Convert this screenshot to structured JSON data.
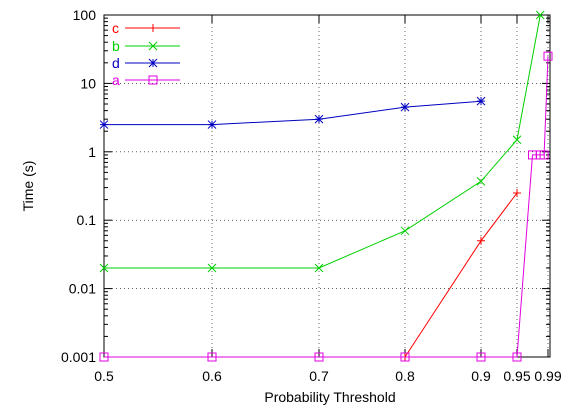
{
  "chart_data": {
    "type": "line",
    "xlabel": "Probability Threshold",
    "ylabel": "Time (s)",
    "x_scale": "categorical",
    "y_scale": "log",
    "ylim": [
      0.001,
      100
    ],
    "grid": true,
    "legend_placement": "top-left",
    "x_ticks": [
      "0.5",
      "0.6",
      "0.7",
      "0.8",
      "0.9",
      "0.95",
      "0.99"
    ],
    "y_ticks": [
      "0.001",
      "0.01",
      "0.1",
      "1",
      "10",
      "100"
    ],
    "series": [
      {
        "name": "c",
        "color": "#ff0000",
        "marker": "plus",
        "x": [
          0.8,
          0.9,
          0.95
        ],
        "values": [
          0.001,
          0.05,
          0.25
        ]
      },
      {
        "name": "b",
        "color": "#00d000",
        "marker": "cross",
        "x": [
          0.5,
          0.6,
          0.7,
          0.8,
          0.9,
          0.95,
          0.98
        ],
        "values": [
          0.02,
          0.02,
          0.02,
          0.07,
          0.37,
          1.5,
          100
        ]
      },
      {
        "name": "d",
        "color": "#0000c0",
        "marker": "star",
        "x": [
          0.5,
          0.6,
          0.7,
          0.8,
          0.9
        ],
        "values": [
          2.5,
          2.5,
          3.0,
          4.5,
          5.5
        ]
      },
      {
        "name": "a",
        "color": "#e000e0",
        "marker": "square",
        "x": [
          0.5,
          0.6,
          0.7,
          0.8,
          0.9,
          0.95,
          0.97,
          0.98,
          0.985,
          0.99
        ],
        "values": [
          0.001,
          0.001,
          0.001,
          0.001,
          0.001,
          0.001,
          0.9,
          0.9,
          0.9,
          25
        ]
      }
    ]
  }
}
